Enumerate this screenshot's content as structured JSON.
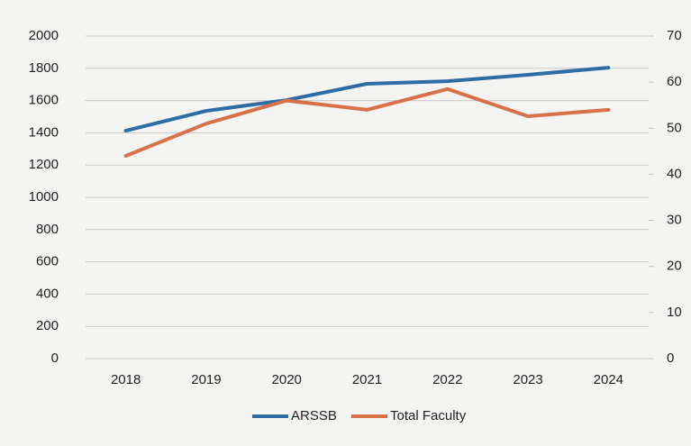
{
  "chart_data": {
    "type": "line",
    "categories": [
      "2018",
      "2019",
      "2020",
      "2021",
      "2022",
      "2023",
      "2024"
    ],
    "series": [
      {
        "name": "ARSSB",
        "color": "#2e6ca4",
        "values": [
          1413,
          1536,
          1603,
          1704,
          1720,
          1760,
          1804
        ]
      },
      {
        "name": "Total Faculty",
        "color": "#d8714a",
        "axis": "y2",
        "values": [
          44,
          51,
          56,
          54,
          58.5,
          52.6,
          54
        ]
      }
    ],
    "ylim": [
      0,
      2000
    ],
    "yticks": [
      0,
      200,
      400,
      600,
      800,
      1000,
      1200,
      1400,
      1600,
      1800,
      2000
    ],
    "y2lim": [
      0,
      70
    ],
    "y2ticks": [
      0,
      10,
      20,
      30,
      40,
      50,
      60,
      70
    ],
    "grid": true,
    "legend": "bottom"
  }
}
